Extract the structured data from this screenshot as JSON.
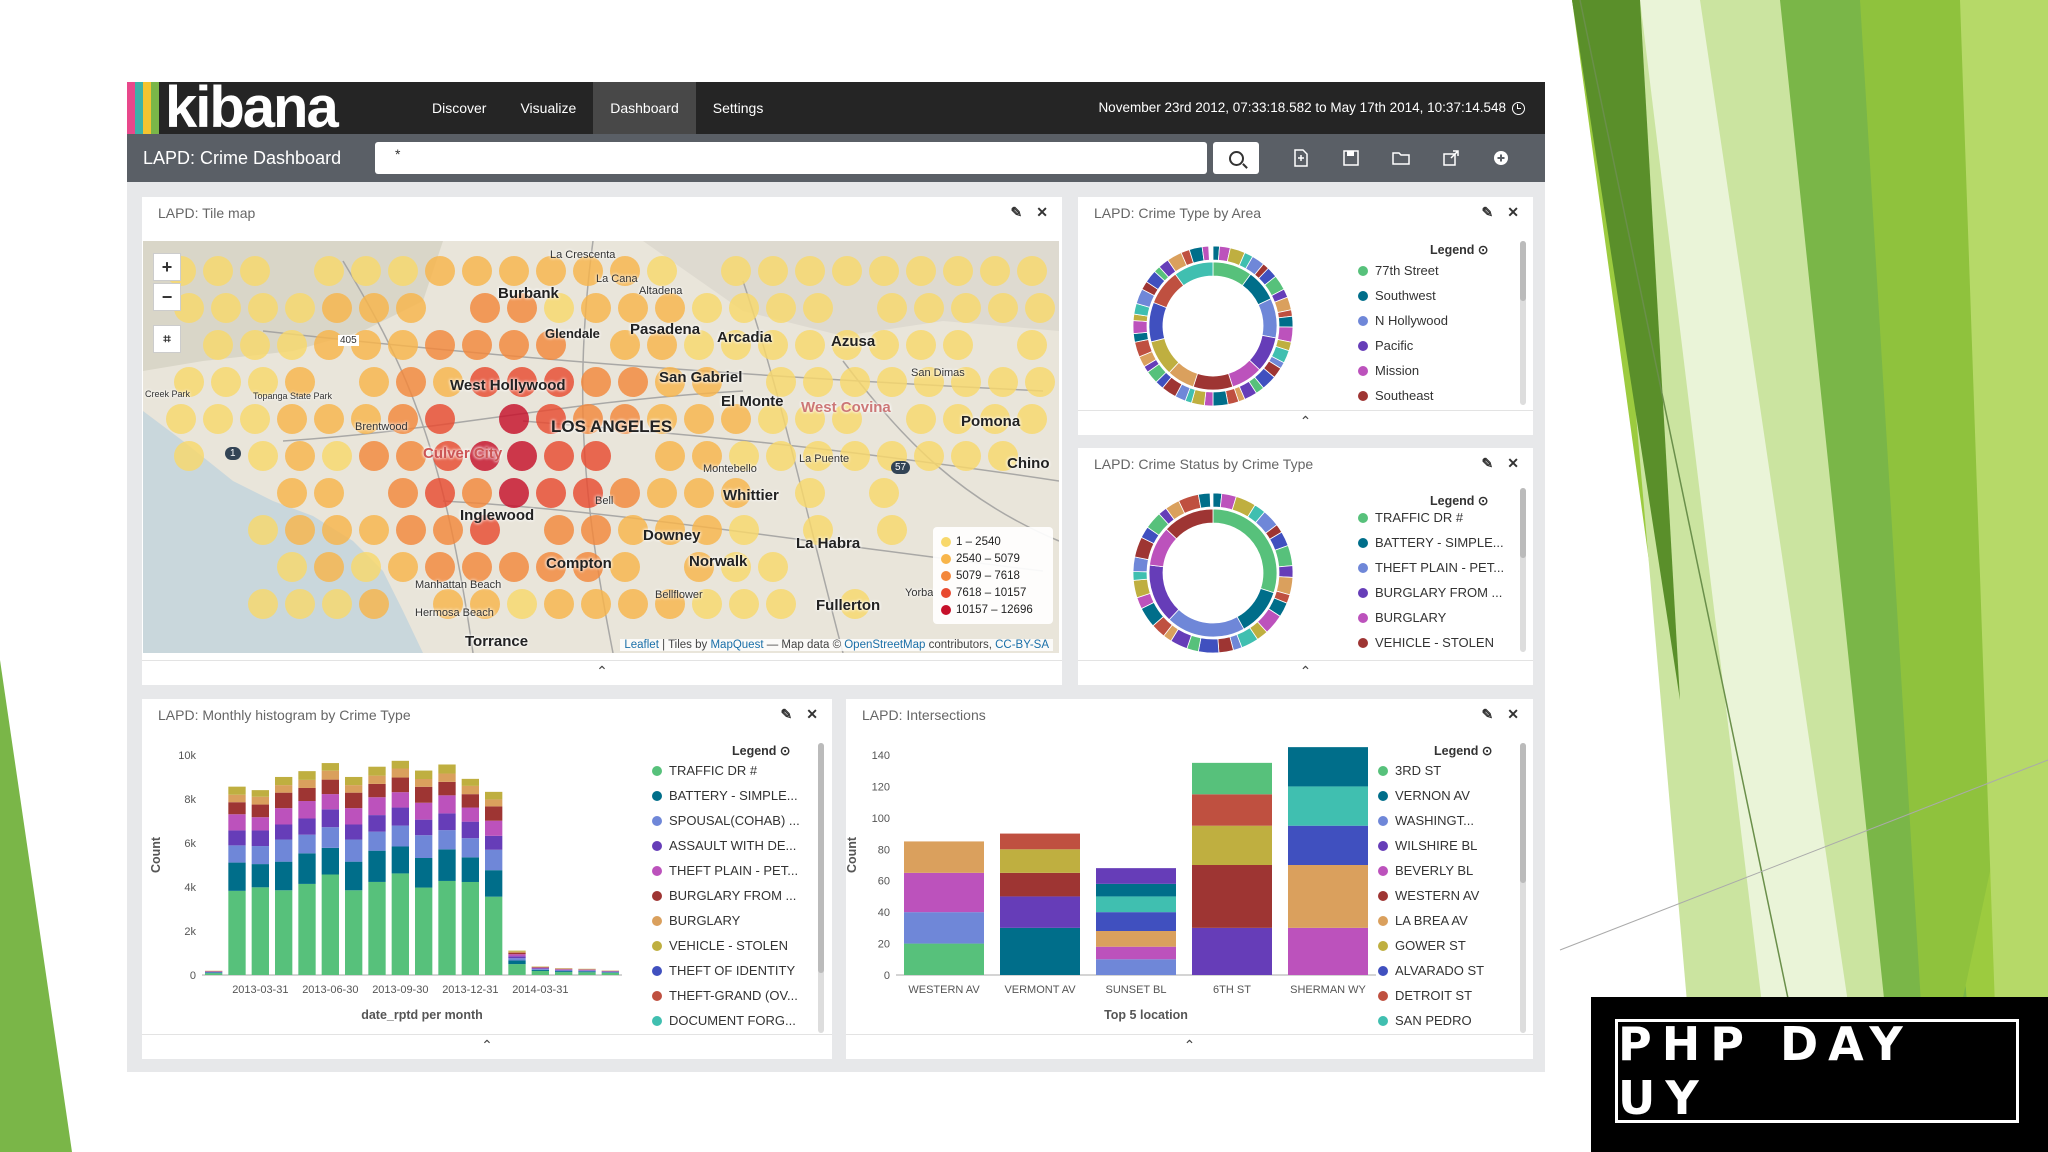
{
  "kibana": {
    "logo_text": "kibana",
    "logo_colors": [
      "#e8488b",
      "#3cb2a9",
      "#f4c430",
      "#7ab648"
    ],
    "nav": [
      "Discover",
      "Visualize",
      "Dashboard",
      "Settings"
    ],
    "active_nav": "Dashboard",
    "time_range": "November 23rd 2012, 07:33:18.582 to May 17th 2014, 10:37:14.548",
    "dashboard_title": "LAPD: Crime Dashboard",
    "query": "*",
    "toolbar_icons": [
      "new-dashboard-icon",
      "save-icon",
      "open-icon",
      "share-icon",
      "add-panel-icon"
    ]
  },
  "panels": {
    "tile_map": {
      "title": "LAPD: Tile map",
      "places": [
        "Burbank",
        "La Crescenta",
        "La Cana",
        "Altadena",
        "Glendale",
        "Pasadena",
        "Arcadia",
        "Azusa",
        "San Gabriel",
        "El Monte",
        "West Covina",
        "San Dimas",
        "Pomona",
        "West Hollywood",
        "LOS ANGELES",
        "Brentwood",
        "Culver City",
        "Montebello",
        "Whittier",
        "La Puente",
        "Chino",
        "Inglewood",
        "Downey",
        "La Habra",
        "Compton",
        "Norwalk",
        "Fullerton",
        "Manhattan Beach",
        "Hermosa Beach",
        "Torrance",
        "Bell",
        "Yorba",
        "Bellflower",
        "Topanga State Park",
        "Creek Park"
      ],
      "shields": [
        "405",
        "1",
        "57"
      ],
      "legend": [
        {
          "label": "1 – 2540",
          "color": "#f8d86b"
        },
        {
          "label": "2540 – 5079",
          "color": "#f8b54a"
        },
        {
          "label": "5079 – 7618",
          "color": "#f3873a"
        },
        {
          "label": "7618 – 10157",
          "color": "#e84a2f"
        },
        {
          "label": "10157 – 12696",
          "color": "#c6102a"
        }
      ],
      "attribution": {
        "leaflet": "Leaflet",
        "tiles": " | Tiles by ",
        "mapquest": "MapQuest",
        "mapdata": " — Map data © ",
        "osm": "OpenStreetMap",
        "contrib": " contributors, ",
        "license": "CC-BY-SA"
      }
    },
    "crime_type_area": {
      "title": "LAPD: Crime Type by Area",
      "legend_label": "Legend",
      "legend": [
        {
          "label": "77th Street",
          "color": "#57c17b"
        },
        {
          "label": "Southwest",
          "color": "#006e8a"
        },
        {
          "label": "N Hollywood",
          "color": "#6f87d8"
        },
        {
          "label": "Pacific",
          "color": "#663db8"
        },
        {
          "label": "Mission",
          "color": "#bc52bc"
        },
        {
          "label": "Southeast",
          "color": "#9e3533"
        }
      ]
    },
    "crime_status": {
      "title": "LAPD: Crime Status by Crime Type",
      "legend_label": "Legend",
      "legend": [
        {
          "label": "TRAFFIC DR #",
          "color": "#57c17b"
        },
        {
          "label": "BATTERY - SIMPLE...",
          "color": "#006e8a"
        },
        {
          "label": "THEFT PLAIN - PET...",
          "color": "#6f87d8"
        },
        {
          "label": "BURGLARY FROM ...",
          "color": "#663db8"
        },
        {
          "label": "BURGLARY",
          "color": "#bc52bc"
        },
        {
          "label": "VEHICLE - STOLEN",
          "color": "#9e3533"
        }
      ]
    },
    "histogram": {
      "title": "LAPD: Monthly histogram by Crime Type",
      "legend_label": "Legend",
      "legend": [
        {
          "label": "TRAFFIC DR #",
          "color": "#57c17b"
        },
        {
          "label": "BATTERY - SIMPLE...",
          "color": "#006e8a"
        },
        {
          "label": "SPOUSAL(COHAB) ...",
          "color": "#6f87d8"
        },
        {
          "label": "ASSAULT WITH DE...",
          "color": "#663db8"
        },
        {
          "label": "THEFT PLAIN - PET...",
          "color": "#bc52bc"
        },
        {
          "label": "BURGLARY FROM ...",
          "color": "#9e3533"
        },
        {
          "label": "BURGLARY",
          "color": "#daa05d"
        },
        {
          "label": "VEHICLE - STOLEN",
          "color": "#bfaf40"
        },
        {
          "label": "THEFT OF IDENTITY",
          "color": "#4050bf"
        },
        {
          "label": "THEFT-GRAND (OV...",
          "color": "#bf5040"
        },
        {
          "label": "DOCUMENT FORG...",
          "color": "#40bfb0"
        }
      ]
    },
    "intersections": {
      "title": "LAPD: Intersections",
      "legend_label": "Legend",
      "legend": [
        {
          "label": "3RD ST",
          "color": "#57c17b"
        },
        {
          "label": "VERNON AV",
          "color": "#006e8a"
        },
        {
          "label": "WASHINGT...",
          "color": "#6f87d8"
        },
        {
          "label": "WILSHIRE BL",
          "color": "#663db8"
        },
        {
          "label": "BEVERLY BL",
          "color": "#bc52bc"
        },
        {
          "label": "WESTERN AV",
          "color": "#9e3533"
        },
        {
          "label": "LA BREA AV",
          "color": "#daa05d"
        },
        {
          "label": "GOWER ST",
          "color": "#bfaf40"
        },
        {
          "label": "ALVARADO ST",
          "color": "#4050bf"
        },
        {
          "label": "DETROIT ST",
          "color": "#bf5040"
        },
        {
          "label": "SAN PEDRO",
          "color": "#40bfb0"
        }
      ]
    }
  },
  "chart_data": [
    {
      "type": "bar",
      "stacked": true,
      "ylabel": "Count",
      "xlabel": "date_rptd per month",
      "ylim": [
        0,
        10000
      ],
      "yticks": [
        "0",
        "2k",
        "4k",
        "6k",
        "8k",
        "10k"
      ],
      "xticks": [
        "2013-03-31",
        "2013-06-30",
        "2013-09-30",
        "2013-12-31",
        "2014-03-31"
      ],
      "series_colors": [
        "#57c17b",
        "#006e8a",
        "#6f87d8",
        "#663db8",
        "#bc52bc",
        "#9e3533",
        "#daa05d",
        "#bfaf40"
      ],
      "totals": [
        200,
        8500,
        8200,
        9300,
        9200,
        9400,
        9300,
        9400,
        9500,
        9600,
        9500,
        8700,
        8600,
        1100,
        380,
        320,
        280,
        200
      ]
    },
    {
      "type": "bar",
      "stacked": true,
      "ylabel": "Count",
      "xlabel": "Top 5 location",
      "ylim": [
        0,
        140
      ],
      "yticks": [
        "0",
        "20",
        "40",
        "60",
        "80",
        "100",
        "120",
        "140"
      ],
      "categories": [
        "WESTERN AV",
        "VERMONT AV",
        "SUNSET BL",
        "6TH ST",
        "SHERMAN WY"
      ],
      "series_colors": [
        "#57c17b",
        "#006e8a",
        "#6f87d8",
        "#663db8",
        "#bc52bc",
        "#9e3533",
        "#daa05d",
        "#bfaf40",
        "#4050bf",
        "#bf5040",
        "#40bfb0"
      ],
      "stacks": [
        [
          20,
          20,
          25,
          20
        ],
        [
          30,
          20,
          15,
          15,
          10
        ],
        [
          10,
          8,
          10,
          12,
          10,
          8,
          10
        ],
        [
          30,
          40,
          25,
          20,
          20
        ],
        [
          30,
          40,
          25,
          25,
          25
        ]
      ]
    }
  ],
  "footer": {
    "badge": "PHP DAY UY"
  }
}
